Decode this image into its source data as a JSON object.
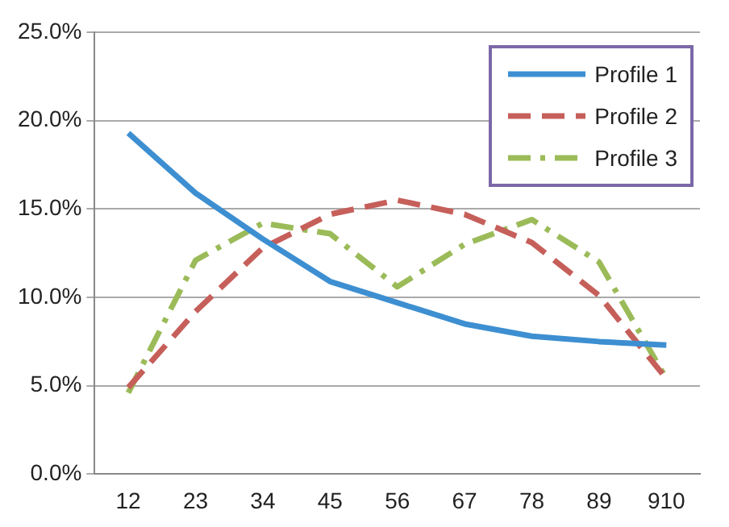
{
  "chart_data": {
    "type": "line",
    "categories": [
      "12",
      "23",
      "34",
      "45",
      "56",
      "67",
      "78",
      "89",
      "910"
    ],
    "series": [
      {
        "name": "Profile 1",
        "color": "#3d8fd1",
        "line_style": "solid",
        "values": [
          19.3,
          15.9,
          13.3,
          10.9,
          9.7,
          8.5,
          7.8,
          7.5,
          7.3
        ]
      },
      {
        "name": "Profile 2",
        "color": "#c65f5a",
        "line_style": "dashed",
        "values": [
          4.9,
          9.2,
          12.8,
          14.7,
          15.5,
          14.7,
          13.1,
          10.1,
          5.4
        ]
      },
      {
        "name": "Profile 3",
        "color": "#9bbb59",
        "line_style": "dotted",
        "values": [
          4.6,
          12.1,
          14.2,
          13.6,
          10.6,
          13.0,
          14.4,
          12.0,
          5.4
        ]
      }
    ],
    "ylim": [
      0,
      25
    ],
    "yticks": [
      {
        "value": 0,
        "label": "0.0%"
      },
      {
        "value": 5,
        "label": "5.0%"
      },
      {
        "value": 10,
        "label": "10.0%"
      },
      {
        "value": 15,
        "label": "15.0%"
      },
      {
        "value": 20,
        "label": "20.0%"
      },
      {
        "value": 25,
        "label": "25.0%"
      }
    ],
    "grid": "y",
    "legend": "top right",
    "marker": "none"
  }
}
